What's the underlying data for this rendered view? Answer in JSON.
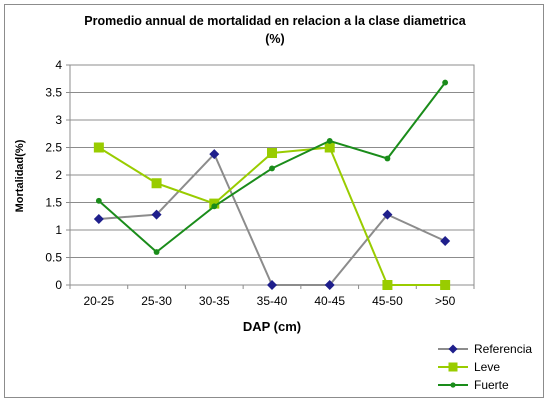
{
  "chart_data": {
    "type": "line",
    "title_line1": "Promedio annual de mortalidad en relacion a la clase diametrica",
    "title_line2": "(%)",
    "xlabel": "DAP (cm)",
    "ylabel": "Mortalidad(%)",
    "categories": [
      "20-25",
      "25-30",
      "30-35",
      "35-40",
      "40-45",
      "45-50",
      ">50"
    ],
    "ylim": [
      0,
      4
    ],
    "yticks": [
      "0",
      "0.5",
      "1",
      "1.5",
      "2",
      "2.5",
      "3",
      "3.5",
      "4"
    ],
    "grid": true,
    "legend_position": "bottom-right",
    "series": [
      {
        "name": "Referencia",
        "values": [
          1.2,
          1.28,
          2.38,
          0,
          0,
          1.28,
          0.8
        ],
        "color": "#8c8c8c",
        "marker": "diamond",
        "marker_color": "#1f1f8c"
      },
      {
        "name": "Leve",
        "values": [
          2.5,
          1.85,
          1.48,
          2.4,
          2.5,
          0,
          0
        ],
        "color": "#99cc00",
        "marker": "square",
        "marker_color": "#99cc00"
      },
      {
        "name": "Fuerte",
        "values": [
          1.53,
          0.6,
          1.43,
          2.12,
          2.62,
          2.3,
          3.68
        ],
        "color": "#1a8c1a",
        "marker": "circle",
        "marker_color": "#1a8c1a"
      }
    ]
  }
}
